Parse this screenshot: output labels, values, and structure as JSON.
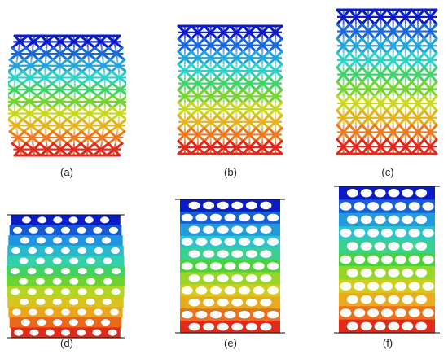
{
  "figure": {
    "panels": [
      {
        "id": "a",
        "label": "(a)",
        "kind": "lattice",
        "style": "barrel"
      },
      {
        "id": "b",
        "label": "(b)",
        "kind": "lattice",
        "style": "straight"
      },
      {
        "id": "c",
        "label": "(c)",
        "kind": "lattice",
        "style": "straight"
      },
      {
        "id": "d",
        "label": "(d)",
        "kind": "perforated",
        "style": "barrel"
      },
      {
        "id": "e",
        "label": "(e)",
        "kind": "perforated",
        "style": "straight"
      },
      {
        "id": "f",
        "label": "(f)",
        "kind": "perforated",
        "style": "straight"
      }
    ],
    "colors": {
      "gradient_top_to_bottom": [
        "#0a1cc8",
        "#1e8ee0",
        "#2fd0c8",
        "#4ad23a",
        "#c8d81e",
        "#f0a01e",
        "#e02a1a"
      ],
      "background": "#ffffff"
    }
  }
}
